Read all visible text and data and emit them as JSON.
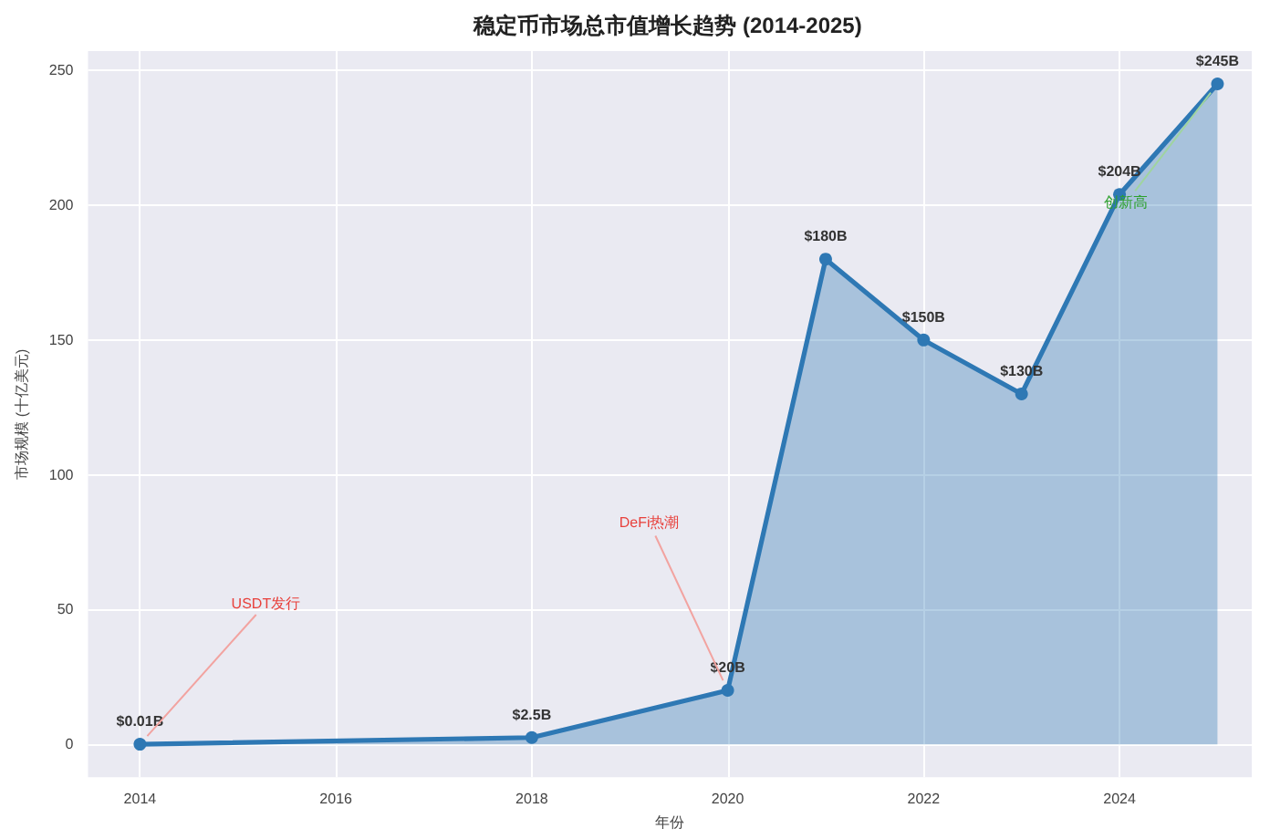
{
  "chart_data": {
    "type": "area",
    "title": "稳定币市场总市值增长趋势 (2014-2025)",
    "xlabel": "年份",
    "ylabel": "市场规模 (十亿美元)",
    "x": [
      2014,
      2018,
      2020,
      2021,
      2022,
      2023,
      2024,
      2025
    ],
    "values": [
      0.01,
      2.5,
      20,
      180,
      150,
      130,
      204,
      245
    ],
    "value_labels": [
      "$0.01B",
      "$2.5B",
      "$20B",
      "$180B",
      "$150B",
      "$130B",
      "$204B",
      "$245B"
    ],
    "color": "#2e78b4",
    "xlim": [
      2013.47,
      2025.35
    ],
    "xticks": [
      2014,
      2016,
      2018,
      2020,
      2022,
      2024
    ],
    "ylim": [
      -12.2,
      257.2
    ],
    "yticks": [
      0,
      50,
      100,
      150,
      200,
      250
    ],
    "annotations": [
      {
        "text": "USDT发行",
        "x": 2014,
        "y": 0.01
      },
      {
        "text": "DeFi热潮",
        "x": 2020,
        "y": 20
      },
      {
        "text": "创新高",
        "x": 2025,
        "y": 245
      }
    ],
    "grid": true,
    "marker": "circle",
    "line_style": "solid"
  }
}
